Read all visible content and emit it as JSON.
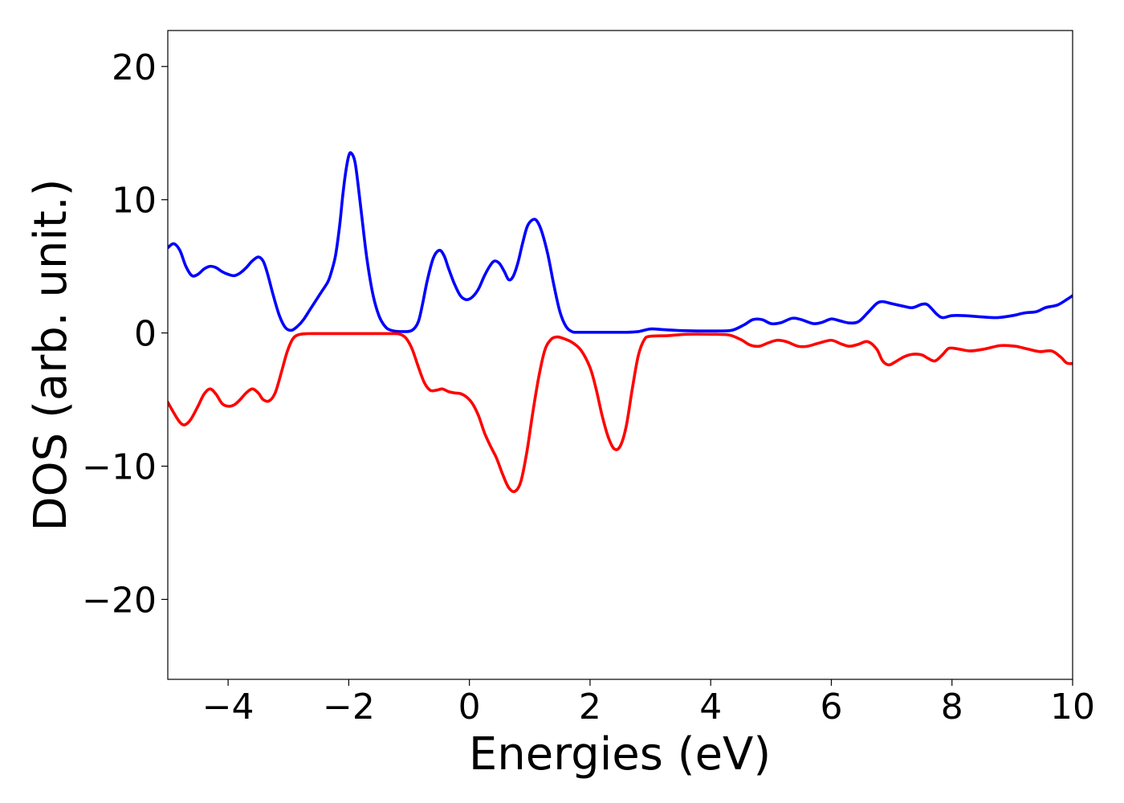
{
  "chart_data": {
    "type": "line",
    "title": "",
    "xlabel": "Energies (eV)",
    "ylabel": "DOS (arb. unit.)",
    "xlim": [
      -5,
      10
    ],
    "ylim": [
      -26,
      22.7
    ],
    "xticks": [
      -4,
      -2,
      0,
      2,
      4,
      6,
      8,
      10
    ],
    "xtick_labels": [
      "−4",
      "−2",
      "0",
      "2",
      "4",
      "6",
      "8",
      "10"
    ],
    "yticks": [
      -20,
      -10,
      0,
      10,
      20
    ],
    "ytick_labels": [
      "−20",
      "−10",
      "0",
      "10",
      "20"
    ],
    "grid": false,
    "legend": false,
    "series": [
      {
        "color": "#0000ff",
        "points": [
          [
            -5.0,
            6.4
          ],
          [
            -4.9,
            6.7
          ],
          [
            -4.8,
            6.2
          ],
          [
            -4.7,
            5.0
          ],
          [
            -4.6,
            4.3
          ],
          [
            -4.5,
            4.4
          ],
          [
            -4.4,
            4.8
          ],
          [
            -4.3,
            5.0
          ],
          [
            -4.2,
            4.9
          ],
          [
            -4.1,
            4.6
          ],
          [
            -4.0,
            4.4
          ],
          [
            -3.9,
            4.3
          ],
          [
            -3.8,
            4.5
          ],
          [
            -3.7,
            4.9
          ],
          [
            -3.6,
            5.4
          ],
          [
            -3.5,
            5.7
          ],
          [
            -3.42,
            5.4
          ],
          [
            -3.35,
            4.5
          ],
          [
            -3.25,
            2.8
          ],
          [
            -3.15,
            1.3
          ],
          [
            -3.05,
            0.4
          ],
          [
            -2.95,
            0.2
          ],
          [
            -2.85,
            0.5
          ],
          [
            -2.75,
            1.0
          ],
          [
            -2.65,
            1.7
          ],
          [
            -2.55,
            2.4
          ],
          [
            -2.45,
            3.1
          ],
          [
            -2.35,
            3.8
          ],
          [
            -2.3,
            4.4
          ],
          [
            -2.22,
            5.8
          ],
          [
            -2.15,
            8.1
          ],
          [
            -2.1,
            10.3
          ],
          [
            -2.05,
            12.1
          ],
          [
            -2.0,
            13.3
          ],
          [
            -1.96,
            13.5
          ],
          [
            -1.9,
            12.9
          ],
          [
            -1.85,
            11.3
          ],
          [
            -1.78,
            8.6
          ],
          [
            -1.7,
            5.6
          ],
          [
            -1.6,
            2.9
          ],
          [
            -1.5,
            1.3
          ],
          [
            -1.4,
            0.5
          ],
          [
            -1.3,
            0.2
          ],
          [
            -1.1,
            0.1
          ],
          [
            -0.95,
            0.2
          ],
          [
            -0.85,
            0.8
          ],
          [
            -0.78,
            2.1
          ],
          [
            -0.7,
            3.9
          ],
          [
            -0.6,
            5.6
          ],
          [
            -0.5,
            6.2
          ],
          [
            -0.42,
            5.8
          ],
          [
            -0.35,
            4.9
          ],
          [
            -0.25,
            3.7
          ],
          [
            -0.15,
            2.8
          ],
          [
            -0.05,
            2.5
          ],
          [
            0.05,
            2.7
          ],
          [
            0.15,
            3.3
          ],
          [
            0.25,
            4.3
          ],
          [
            0.35,
            5.1
          ],
          [
            0.42,
            5.4
          ],
          [
            0.5,
            5.2
          ],
          [
            0.58,
            4.6
          ],
          [
            0.65,
            4.0
          ],
          [
            0.72,
            4.2
          ],
          [
            0.8,
            5.2
          ],
          [
            0.88,
            6.7
          ],
          [
            0.96,
            8.0
          ],
          [
            1.05,
            8.5
          ],
          [
            1.12,
            8.4
          ],
          [
            1.2,
            7.6
          ],
          [
            1.3,
            5.9
          ],
          [
            1.4,
            3.6
          ],
          [
            1.5,
            1.6
          ],
          [
            1.6,
            0.5
          ],
          [
            1.7,
            0.1
          ],
          [
            1.8,
            0.05
          ],
          [
            2.2,
            0.05
          ],
          [
            2.6,
            0.05
          ],
          [
            2.8,
            0.1
          ],
          [
            3.0,
            0.3
          ],
          [
            3.2,
            0.25
          ],
          [
            3.5,
            0.18
          ],
          [
            3.8,
            0.15
          ],
          [
            4.1,
            0.15
          ],
          [
            4.35,
            0.2
          ],
          [
            4.55,
            0.6
          ],
          [
            4.7,
            1.0
          ],
          [
            4.85,
            1.0
          ],
          [
            5.0,
            0.7
          ],
          [
            5.15,
            0.75
          ],
          [
            5.35,
            1.1
          ],
          [
            5.5,
            1.0
          ],
          [
            5.7,
            0.7
          ],
          [
            5.85,
            0.8
          ],
          [
            6.0,
            1.05
          ],
          [
            6.15,
            0.9
          ],
          [
            6.3,
            0.75
          ],
          [
            6.45,
            0.85
          ],
          [
            6.6,
            1.5
          ],
          [
            6.75,
            2.2
          ],
          [
            6.85,
            2.35
          ],
          [
            7.0,
            2.2
          ],
          [
            7.2,
            2.0
          ],
          [
            7.35,
            1.9
          ],
          [
            7.5,
            2.15
          ],
          [
            7.6,
            2.1
          ],
          [
            7.75,
            1.4
          ],
          [
            7.85,
            1.15
          ],
          [
            8.0,
            1.3
          ],
          [
            8.2,
            1.3
          ],
          [
            8.5,
            1.2
          ],
          [
            8.75,
            1.15
          ],
          [
            9.0,
            1.3
          ],
          [
            9.2,
            1.5
          ],
          [
            9.4,
            1.6
          ],
          [
            9.55,
            1.9
          ],
          [
            9.75,
            2.1
          ],
          [
            9.9,
            2.5
          ],
          [
            10.0,
            2.8
          ]
        ]
      },
      {
        "color": "#ff0000",
        "points": [
          [
            -5.0,
            -5.2
          ],
          [
            -4.9,
            -6.0
          ],
          [
            -4.8,
            -6.7
          ],
          [
            -4.72,
            -6.9
          ],
          [
            -4.62,
            -6.5
          ],
          [
            -4.5,
            -5.5
          ],
          [
            -4.4,
            -4.6
          ],
          [
            -4.3,
            -4.2
          ],
          [
            -4.2,
            -4.6
          ],
          [
            -4.1,
            -5.3
          ],
          [
            -4.0,
            -5.5
          ],
          [
            -3.9,
            -5.4
          ],
          [
            -3.8,
            -5.0
          ],
          [
            -3.7,
            -4.5
          ],
          [
            -3.6,
            -4.2
          ],
          [
            -3.5,
            -4.5
          ],
          [
            -3.42,
            -5.0
          ],
          [
            -3.32,
            -5.1
          ],
          [
            -3.22,
            -4.5
          ],
          [
            -3.12,
            -3.0
          ],
          [
            -3.02,
            -1.4
          ],
          [
            -2.92,
            -0.4
          ],
          [
            -2.8,
            -0.1
          ],
          [
            -2.6,
            -0.05
          ],
          [
            -2.0,
            -0.05
          ],
          [
            -1.3,
            -0.05
          ],
          [
            -1.15,
            -0.1
          ],
          [
            -1.05,
            -0.4
          ],
          [
            -0.95,
            -1.2
          ],
          [
            -0.85,
            -2.5
          ],
          [
            -0.75,
            -3.7
          ],
          [
            -0.65,
            -4.3
          ],
          [
            -0.55,
            -4.3
          ],
          [
            -0.45,
            -4.2
          ],
          [
            -0.35,
            -4.4
          ],
          [
            -0.25,
            -4.5
          ],
          [
            -0.15,
            -4.55
          ],
          [
            -0.05,
            -4.8
          ],
          [
            0.05,
            -5.3
          ],
          [
            0.15,
            -6.2
          ],
          [
            0.25,
            -7.5
          ],
          [
            0.35,
            -8.5
          ],
          [
            0.45,
            -9.4
          ],
          [
            0.55,
            -10.6
          ],
          [
            0.65,
            -11.6
          ],
          [
            0.75,
            -11.9
          ],
          [
            0.85,
            -11.2
          ],
          [
            0.95,
            -9.0
          ],
          [
            1.05,
            -6.0
          ],
          [
            1.15,
            -3.3
          ],
          [
            1.25,
            -1.3
          ],
          [
            1.35,
            -0.5
          ],
          [
            1.45,
            -0.3
          ],
          [
            1.55,
            -0.4
          ],
          [
            1.7,
            -0.7
          ],
          [
            1.85,
            -1.3
          ],
          [
            2.0,
            -2.6
          ],
          [
            2.1,
            -4.2
          ],
          [
            2.2,
            -6.2
          ],
          [
            2.3,
            -7.8
          ],
          [
            2.4,
            -8.7
          ],
          [
            2.5,
            -8.5
          ],
          [
            2.6,
            -7.0
          ],
          [
            2.7,
            -4.2
          ],
          [
            2.8,
            -1.7
          ],
          [
            2.9,
            -0.5
          ],
          [
            3.0,
            -0.25
          ],
          [
            3.3,
            -0.2
          ],
          [
            3.6,
            -0.1
          ],
          [
            4.0,
            -0.1
          ],
          [
            4.3,
            -0.15
          ],
          [
            4.5,
            -0.5
          ],
          [
            4.65,
            -0.9
          ],
          [
            4.8,
            -1.0
          ],
          [
            4.95,
            -0.75
          ],
          [
            5.1,
            -0.55
          ],
          [
            5.25,
            -0.65
          ],
          [
            5.45,
            -1.0
          ],
          [
            5.6,
            -1.0
          ],
          [
            5.8,
            -0.75
          ],
          [
            6.0,
            -0.55
          ],
          [
            6.15,
            -0.8
          ],
          [
            6.3,
            -1.0
          ],
          [
            6.45,
            -0.85
          ],
          [
            6.6,
            -0.65
          ],
          [
            6.75,
            -1.2
          ],
          [
            6.85,
            -2.1
          ],
          [
            6.95,
            -2.4
          ],
          [
            7.05,
            -2.2
          ],
          [
            7.2,
            -1.8
          ],
          [
            7.35,
            -1.6
          ],
          [
            7.5,
            -1.65
          ],
          [
            7.6,
            -1.9
          ],
          [
            7.72,
            -2.1
          ],
          [
            7.85,
            -1.6
          ],
          [
            7.95,
            -1.15
          ],
          [
            8.1,
            -1.2
          ],
          [
            8.3,
            -1.35
          ],
          [
            8.55,
            -1.2
          ],
          [
            8.8,
            -0.95
          ],
          [
            9.05,
            -1.0
          ],
          [
            9.25,
            -1.2
          ],
          [
            9.45,
            -1.4
          ],
          [
            9.65,
            -1.35
          ],
          [
            9.8,
            -1.8
          ],
          [
            9.9,
            -2.25
          ],
          [
            10.0,
            -2.3
          ]
        ]
      }
    ]
  }
}
